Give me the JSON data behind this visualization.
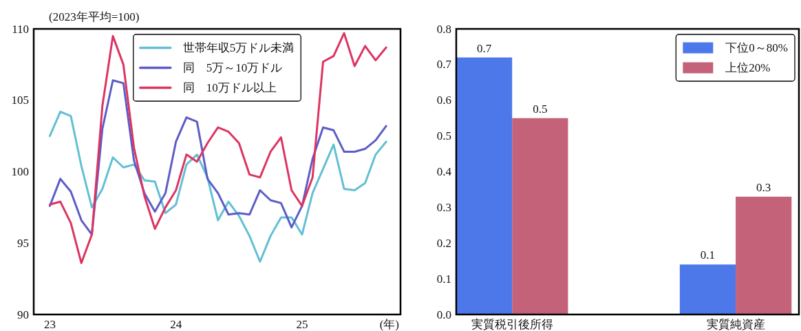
{
  "chart_data": [
    {
      "type": "line",
      "ylabel": "(2023年平均=100)",
      "xlabel": "(年)",
      "x": [
        "2023-01",
        "2023-02",
        "2023-03",
        "2023-04",
        "2023-05",
        "2023-06",
        "2023-07",
        "2023-08",
        "2023-09",
        "2023-10",
        "2023-11",
        "2023-12",
        "2024-01",
        "2024-02",
        "2024-03",
        "2024-04",
        "2024-05",
        "2024-06",
        "2024-07",
        "2024-08",
        "2024-09",
        "2024-10",
        "2024-11",
        "2024-12",
        "2025-01",
        "2025-02",
        "2025-03",
        "2025-04",
        "2025-05",
        "2025-06",
        "2025-07",
        "2025-08",
        "2025-09"
      ],
      "series": [
        {
          "name": "世帯年収5万ドル未満",
          "color": "#62bfd4",
          "values": [
            102.5,
            104.2,
            103.9,
            100.4,
            97.5,
            98.8,
            101.0,
            100.3,
            100.5,
            99.4,
            99.3,
            97.1,
            97.7,
            100.5,
            101.2,
            99.6,
            96.6,
            97.9,
            96.9,
            95.5,
            93.7,
            95.5,
            96.8,
            96.8,
            95.6,
            98.5,
            100.2,
            101.9,
            98.8,
            98.7,
            99.2,
            101.2,
            102.1
          ]
        },
        {
          "name": "同　5万～10万ドル",
          "color": "#5c5cc8",
          "values": [
            97.6,
            99.5,
            98.6,
            96.6,
            95.6,
            103.0,
            106.4,
            106.2,
            100.8,
            98.5,
            97.2,
            98.5,
            102.1,
            103.8,
            103.5,
            99.5,
            98.5,
            97.0,
            97.1,
            97.0,
            98.7,
            98.0,
            97.8,
            96.1,
            97.6,
            100.9,
            103.1,
            102.9,
            101.4,
            101.4,
            101.6,
            102.2,
            103.2
          ]
        },
        {
          "name": "同　10万ドル以上",
          "color": "#dc3461",
          "values": [
            97.7,
            97.9,
            96.4,
            93.6,
            95.6,
            104.6,
            109.5,
            107.5,
            101.7,
            98.3,
            96.0,
            97.5,
            98.7,
            101.2,
            100.7,
            102.0,
            103.1,
            102.8,
            102.0,
            99.8,
            99.6,
            101.4,
            102.4,
            98.7,
            97.6,
            99.6,
            107.7,
            108.1,
            109.7,
            107.4,
            108.8,
            107.8,
            108.7
          ]
        }
      ],
      "xlim": [
        "2022-11-15",
        "2025-10-12"
      ],
      "xticks": [
        {
          "value": "2023-01",
          "label": "23"
        },
        {
          "value": "2024-01",
          "label": "24"
        },
        {
          "value": "2025-01",
          "label": "25"
        }
      ],
      "ylim": [
        90,
        110
      ],
      "yticks": [
        90,
        95,
        100,
        105,
        110
      ],
      "legend": "top",
      "grid": false,
      "line_style": "solid",
      "marker": "none"
    },
    {
      "type": "bar",
      "categories": [
        "実質税引後所得",
        "実質純資産"
      ],
      "series": [
        {
          "name": "下位0～80%",
          "color": "#4d78ea",
          "values": [
            0.72,
            0.14
          ],
          "value_labels": [
            "0.7",
            "0.1"
          ]
        },
        {
          "name": "上位20%",
          "color": "#c46279",
          "values": [
            0.55,
            0.33
          ],
          "value_labels": [
            "0.5",
            "0.3"
          ]
        }
      ],
      "ylim": [
        0,
        0.8
      ],
      "yticks": [
        {
          "value": 0,
          "label": "0.0"
        },
        0.1,
        0.2,
        0.3,
        0.4,
        0.5,
        0.6,
        0.7,
        0.8
      ],
      "legend": "top right",
      "grid": false
    }
  ]
}
